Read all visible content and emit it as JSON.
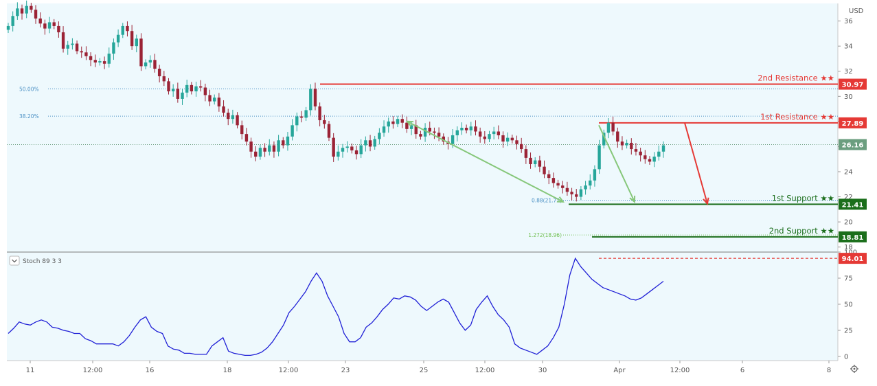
{
  "currency_label": "USD",
  "indicator": {
    "label": "Stoch 89 3 3"
  },
  "settings_icon": "gear-icon",
  "colors": {
    "background": "#eef9fd",
    "candle_up": "#26a69a",
    "candle_down": "#9b2335",
    "resistance": "#e53935",
    "support": "#1b6e1b",
    "current": "#6b9e7f",
    "fib": "#4a90c4",
    "arrow_green": "#86c77a",
    "arrow_red": "#e53935",
    "stoch": "#1f1fd6"
  },
  "chart_data": [
    {
      "type": "candlestick",
      "title": "",
      "y_axis_ticks": [
        18.0,
        20.0,
        22.0,
        24.0,
        26.0,
        28.0,
        30.0,
        32.0,
        34.0,
        36.0
      ],
      "ylim": [
        17.6,
        37.4
      ],
      "x_axis_labels": [
        "11",
        "12:00",
        "16",
        "18",
        "12:00",
        "23",
        "25",
        "12:00",
        "30",
        "Apr",
        "12:00",
        "6",
        "8"
      ],
      "levels": [
        {
          "name": "2nd Resistance ★★",
          "value": "30.97",
          "kind": "resistance"
        },
        {
          "name": "1st Resistance ★★",
          "value": "27.89",
          "kind": "resistance"
        },
        {
          "name": "",
          "value": "26.16",
          "kind": "current"
        },
        {
          "name": "1st Support ★★",
          "value": "21.41",
          "kind": "support"
        },
        {
          "name": "2nd Support ★★",
          "value": "18.81",
          "kind": "support"
        }
      ],
      "fib_levels": [
        {
          "label": "50.00%",
          "value": 30.6
        },
        {
          "label": "38.20%",
          "value": 28.42
        },
        {
          "label": "0.88(21.72)",
          "value": 21.72
        },
        {
          "label": "1.272(18.96)",
          "value": 18.96
        }
      ],
      "close_series": [
        35.6,
        36.4,
        37.0,
        36.6,
        37.2,
        36.9,
        36.2,
        35.8,
        35.4,
        35.9,
        35.6,
        35.1,
        33.8,
        34.1,
        34.2,
        33.6,
        33.5,
        33.2,
        32.9,
        32.7,
        32.8,
        32.6,
        33.4,
        34.3,
        34.9,
        35.6,
        35.2,
        34.0,
        34.6,
        32.4,
        32.7,
        32.9,
        32.2,
        31.6,
        31.2,
        30.4,
        30.6,
        29.8,
        30.3,
        30.9,
        30.4,
        30.8,
        30.7,
        30.1,
        29.6,
        29.9,
        29.2,
        28.7,
        28.2,
        28.5,
        27.7,
        27.0,
        26.4,
        25.6,
        25.2,
        25.9,
        25.6,
        26.1,
        25.6,
        26.5,
        26.1,
        26.8,
        27.7,
        28.4,
        28.3,
        28.9,
        30.6,
        29.2,
        28.1,
        27.8,
        26.7,
        25.2,
        25.6,
        25.9,
        26.0,
        25.7,
        25.4,
        26.1,
        26.5,
        26.0,
        26.6,
        27.1,
        27.6,
        28.0,
        27.8,
        28.2,
        27.9,
        27.4,
        27.7,
        27.0,
        26.8,
        27.5,
        27.2,
        27.1,
        26.8,
        26.4,
        26.2,
        26.9,
        27.3,
        27.5,
        27.3,
        27.6,
        27.2,
        26.8,
        26.6,
        27.0,
        27.2,
        26.9,
        26.4,
        26.7,
        26.5,
        26.2,
        25.8,
        25.1,
        24.6,
        24.9,
        24.4,
        23.8,
        23.5,
        23.1,
        22.9,
        22.7,
        22.4,
        22.2,
        22.0,
        22.6,
        22.9,
        23.3,
        24.2,
        26.1,
        27.1,
        27.9,
        27.2,
        26.4,
        26.1,
        26.3,
        25.8,
        25.6,
        25.3,
        25.0,
        24.8,
        25.2,
        25.6,
        26.1
      ]
    },
    {
      "type": "line",
      "title": "",
      "y_axis_ticks": [
        0.0,
        25.0,
        50.0,
        75.0,
        100.0
      ],
      "ylim": [
        -4,
        100
      ],
      "marker_value": "94.01",
      "series": [
        {
          "values": [
            22,
            27,
            33,
            31,
            30,
            33,
            35,
            33,
            28,
            27,
            25,
            24,
            22,
            22,
            17,
            15,
            12,
            12,
            12,
            12,
            10,
            14,
            20,
            28,
            35,
            38,
            28,
            24,
            22,
            10,
            7,
            6,
            3,
            3,
            2,
            2,
            2,
            10,
            14,
            18,
            5,
            3,
            2,
            1,
            1,
            2,
            4,
            8,
            14,
            22,
            30,
            42,
            48,
            55,
            62,
            72,
            80,
            72,
            58,
            48,
            38,
            22,
            14,
            14,
            18,
            28,
            32,
            38,
            45,
            50,
            56,
            55,
            58,
            57,
            54,
            48,
            44,
            48,
            52,
            55,
            52,
            42,
            32,
            25,
            30,
            45,
            52,
            58,
            48,
            40,
            35,
            28,
            12,
            8,
            6,
            4,
            2,
            6,
            10,
            18,
            28,
            50,
            78,
            94,
            86,
            80,
            74,
            70,
            66,
            64,
            62,
            60,
            58,
            55,
            54,
            56,
            60,
            64,
            68,
            72
          ]
        }
      ]
    }
  ]
}
